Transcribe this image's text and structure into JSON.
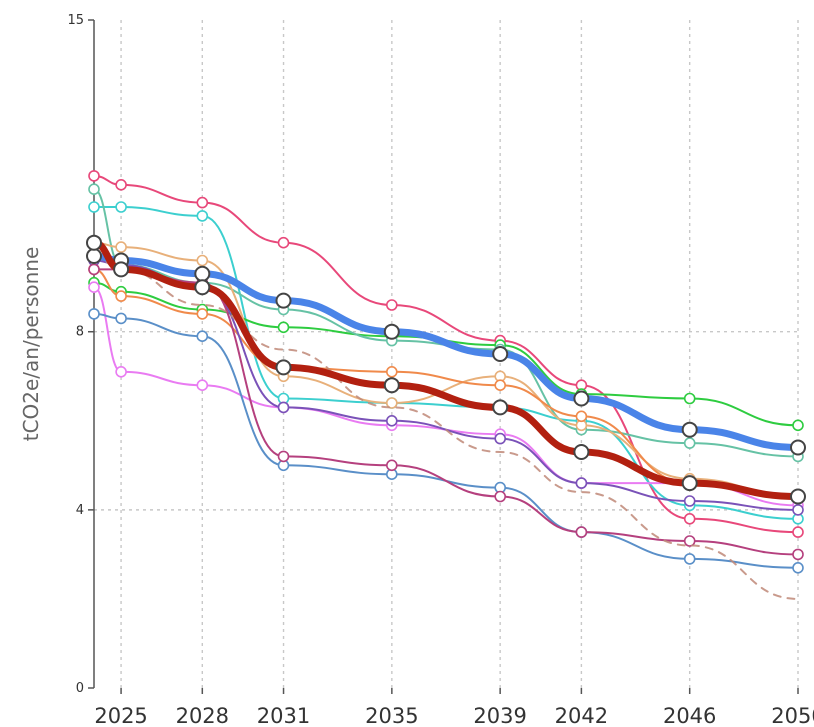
{
  "chart_data": {
    "type": "line",
    "title": "",
    "xlabel": "",
    "ylabel": "tCO2e/an/personne",
    "x_ticks": [
      2025,
      2028,
      2031,
      2035,
      2039,
      2042,
      2046,
      2050
    ],
    "y_ticks": [
      0,
      4,
      8,
      15
    ],
    "xlim": [
      2024,
      2050
    ],
    "ylim": [
      0,
      15
    ],
    "grid": true,
    "legend": "none",
    "series": [
      {
        "color": "#e8487a",
        "width": 2,
        "dashed": false,
        "x": [
          2024,
          2025,
          2028,
          2031,
          2035,
          2039,
          2042,
          2046,
          2050
        ],
        "y": [
          11.5,
          11.3,
          10.9,
          10.0,
          8.6,
          7.8,
          6.8,
          3.8,
          3.5
        ]
      },
      {
        "color": "#3ccfcf",
        "width": 2,
        "dashed": false,
        "x": [
          2024,
          2025,
          2028,
          2031,
          2035,
          2039,
          2042,
          2046,
          2050
        ],
        "y": [
          10.8,
          10.8,
          10.6,
          6.5,
          6.4,
          6.3,
          6.0,
          4.1,
          3.8
        ]
      },
      {
        "color": "#2ecc40",
        "width": 2,
        "dashed": false,
        "x": [
          2024,
          2025,
          2028,
          2031,
          2035,
          2039,
          2042,
          2046,
          2050
        ],
        "y": [
          9.1,
          8.9,
          8.5,
          8.1,
          7.9,
          7.7,
          6.6,
          6.5,
          5.9
        ]
      },
      {
        "color": "#66c2a5",
        "width": 2,
        "dashed": false,
        "x": [
          2024,
          2025,
          2028,
          2031,
          2035,
          2039,
          2042,
          2046,
          2050
        ],
        "y": [
          11.2,
          9.5,
          9.1,
          8.5,
          7.8,
          7.6,
          5.8,
          5.5,
          5.2
        ]
      },
      {
        "color": "#e8b07a",
        "width": 2,
        "dashed": false,
        "x": [
          2024,
          2025,
          2028,
          2031,
          2035,
          2039,
          2042,
          2046,
          2050
        ],
        "y": [
          10.0,
          9.9,
          9.6,
          7.0,
          6.4,
          7.0,
          5.9,
          4.7,
          4.3
        ]
      },
      {
        "color": "#f08a4b",
        "width": 2,
        "dashed": false,
        "x": [
          2024,
          2025,
          2028,
          2031,
          2035,
          2039,
          2042,
          2046,
          2050
        ],
        "y": [
          9.4,
          8.8,
          8.4,
          7.2,
          7.1,
          6.8,
          6.1,
          4.6,
          4.3
        ]
      },
      {
        "color": "#e97bf2",
        "width": 2,
        "dashed": false,
        "x": [
          2024,
          2025,
          2028,
          2031,
          2035,
          2039,
          2042,
          2046,
          2050
        ],
        "y": [
          9.0,
          7.1,
          6.8,
          6.3,
          5.9,
          5.7,
          4.6,
          4.6,
          4.1
        ]
      },
      {
        "color": "#7a52b8",
        "width": 2,
        "dashed": false,
        "x": [
          2024,
          2025,
          2028,
          2031,
          2035,
          2039,
          2042,
          2046,
          2050
        ],
        "y": [
          9.6,
          9.5,
          9.0,
          6.3,
          6.0,
          5.6,
          4.6,
          4.2,
          4.0
        ]
      },
      {
        "color": "#5a8fc8",
        "width": 2,
        "dashed": false,
        "x": [
          2024,
          2025,
          2028,
          2031,
          2035,
          2039,
          2042,
          2046,
          2050
        ],
        "y": [
          8.4,
          8.3,
          7.9,
          5.0,
          4.8,
          4.5,
          3.5,
          2.9,
          2.7
        ]
      },
      {
        "color": "#b5407e",
        "width": 2,
        "dashed": false,
        "x": [
          2024,
          2025,
          2028,
          2031,
          2035,
          2039,
          2042,
          2046,
          2050
        ],
        "y": [
          9.4,
          9.4,
          9.1,
          5.2,
          5.0,
          4.3,
          3.5,
          3.3,
          3.0
        ]
      },
      {
        "color": "#4a84e8",
        "width": 7,
        "dashed": false,
        "x": [
          2024,
          2025,
          2028,
          2031,
          2035,
          2039,
          2042,
          2046,
          2050
        ],
        "y": [
          9.7,
          9.6,
          9.3,
          8.7,
          8.0,
          7.5,
          6.5,
          5.8,
          5.4
        ]
      },
      {
        "color": "#b22010",
        "width": 7,
        "dashed": false,
        "x": [
          2024,
          2025,
          2028,
          2031,
          2035,
          2039,
          2042,
          2046,
          2050
        ],
        "y": [
          10.0,
          9.4,
          9.0,
          7.2,
          6.8,
          6.3,
          5.3,
          4.6,
          4.3
        ]
      },
      {
        "color": "#c08878",
        "width": 2,
        "dashed": true,
        "x": [
          2024,
          2025,
          2028,
          2031,
          2035,
          2039,
          2042,
          2046,
          2050
        ],
        "y": [
          9.7,
          9.4,
          8.6,
          7.6,
          6.3,
          5.3,
          4.4,
          3.2,
          2.0
        ]
      }
    ]
  }
}
